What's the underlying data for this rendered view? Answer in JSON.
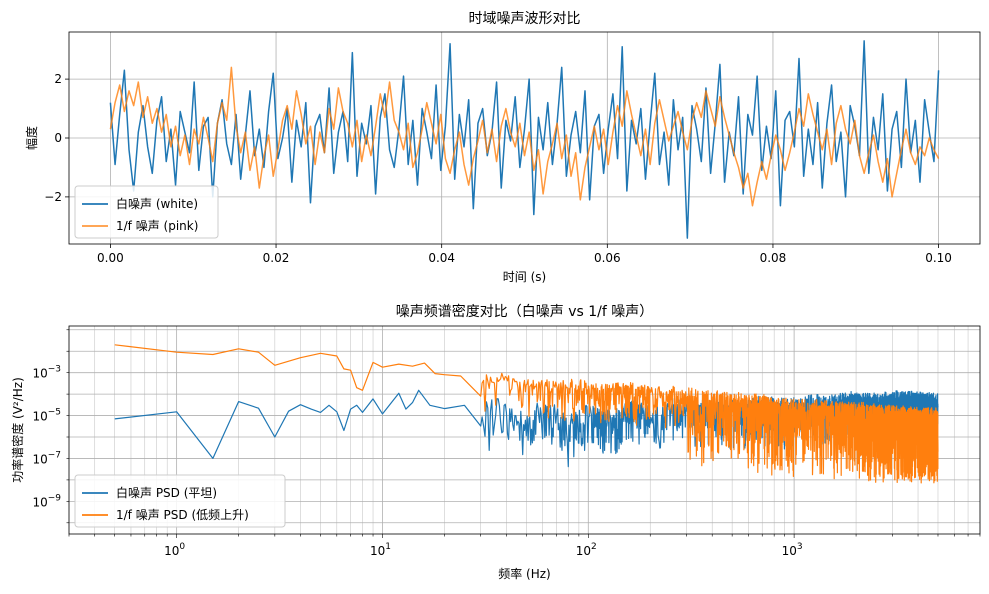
{
  "chart_data": [
    {
      "type": "line",
      "title": "时域噪声波形对比",
      "xlabel": "时间 (s)",
      "ylabel": "幅度",
      "xlim": [
        -0.005,
        0.105
      ],
      "ylim": [
        -3.6,
        3.6
      ],
      "x_ticks": [
        0.0,
        0.02,
        0.04,
        0.06,
        0.08,
        0.1
      ],
      "x_tick_labels": [
        "0.00",
        "0.02",
        "0.04",
        "0.06",
        "0.08",
        "0.10"
      ],
      "y_ticks": [
        -2,
        0,
        2
      ],
      "y_tick_labels": [
        "−2",
        "0",
        "2"
      ],
      "grid": true,
      "legend_position": "lower-left",
      "series": [
        {
          "name": "白噪声 (white)",
          "color": "#1f77b4",
          "opacity": 1.0,
          "x_start": 0.0,
          "x_end": 0.1,
          "values": [
            1.2,
            -0.9,
            0.8,
            2.3,
            -0.4,
            -1.8,
            0.2,
            1.1,
            -0.3,
            -1.2,
            0.6,
            1.4,
            -0.8,
            0.3,
            -1.6,
            0.9,
            0.2,
            -0.5,
            1.9,
            -1.1,
            0.4,
            0.7,
            -2.0,
            0.5,
            1.3,
            -0.2,
            -0.9,
            0.8,
            -1.4,
            0.1,
            1.6,
            -0.6,
            0.3,
            -1.0,
            0.9,
            2.2,
            -0.7,
            0.0,
            1.0,
            -1.5,
            0.6,
            -0.3,
            1.2,
            -2.2,
            0.4,
            0.8,
            -0.5,
            1.7,
            -1.2,
            0.2,
            0.9,
            -0.8,
            2.9,
            -1.3,
            0.5,
            -0.2,
            1.1,
            -1.9,
            0.7,
            1.5,
            -0.4,
            -1.0,
            0.3,
            2.1,
            -0.9,
            0.6,
            -1.6,
            1.0,
            0.2,
            -0.7,
            1.8,
            -1.1,
            0.4,
            3.2,
            -1.4,
            0.8,
            -0.3,
            1.3,
            -2.4,
            0.5,
            1.0,
            -0.6,
            0.2,
            1.9,
            -1.7,
            0.6,
            -0.1,
            1.4,
            -1.0,
            0.3,
            2.0,
            -2.6,
            0.7,
            -0.4,
            1.2,
            -0.9,
            0.5,
            2.4,
            -1.3,
            0.1,
            0.9,
            -0.5,
            1.6,
            -2.1,
            0.4,
            0.8,
            -1.2,
            0.3,
            1.5,
            -0.7,
            3.1,
            -1.8,
            0.6,
            -0.2,
            1.0,
            -1.4,
            0.5,
            2.2,
            -0.9,
            0.2,
            -1.6,
            1.3,
            -0.4,
            0.7,
            -3.4,
            1.1,
            0.3,
            -0.8,
            1.7,
            -1.2,
            0.5,
            2.5,
            -1.5,
            0.2,
            -0.6,
            1.4,
            -1.9,
            0.8,
            0.1,
            2.1,
            -1.1,
            0.4,
            -0.7,
            1.6,
            -2.3,
            0.6,
            0.9,
            -0.3,
            2.7,
            -1.3,
            0.3,
            -0.9,
            1.2,
            -1.7,
            0.5,
            1.8,
            -0.8,
            0.2,
            -2.0,
            1.1,
            0.4,
            -0.6,
            3.3,
            -1.2,
            0.7,
            -0.4,
            1.5,
            -1.8,
            0.3,
            0.9,
            -1.0,
            2.0,
            -0.5,
            0.6,
            -1.5,
            1.3,
            0.2,
            -0.8,
            2.3
          ]
        },
        {
          "name": "1/f 噪声 (pink)",
          "color": "#ff7f0e",
          "opacity": 0.8,
          "x_start": 0.0,
          "x_end": 0.1,
          "values": [
            0.3,
            1.2,
            1.8,
            0.9,
            1.6,
            1.1,
            1.9,
            0.7,
            1.4,
            0.5,
            1.0,
            0.2,
            0.8,
            -0.3,
            0.4,
            -0.6,
            0.1,
            -0.9,
            0.3,
            -0.2,
            0.7,
            0.0,
            -0.8,
            0.5,
            1.2,
            0.6,
            2.4,
            0.4,
            -0.5,
            0.2,
            -1.1,
            -0.3,
            -1.7,
            -0.6,
            0.1,
            -1.3,
            -0.4,
            0.6,
            1.1,
            0.3,
            1.6,
            0.8,
            -0.2,
            0.4,
            -0.9,
            0.2,
            -0.5,
            1.0,
            0.3,
            1.7,
            0.9,
            0.5,
            -0.3,
            0.6,
            -0.8,
            0.1,
            -0.6,
            0.4,
            1.5,
            0.7,
            1.9,
            0.6,
            0.2,
            -0.4,
            0.5,
            -1.0,
            -0.5,
            0.3,
            1.2,
            0.5,
            -0.2,
            0.8,
            -0.7,
            -1.2,
            -0.4,
            0.2,
            -0.9,
            -1.6,
            -0.7,
            -0.1,
            0.6,
            -0.5,
            0.3,
            -0.8,
            0.4,
            1.0,
            0.2,
            -0.3,
            0.5,
            -0.6,
            0.2,
            -1.1,
            -0.4,
            -1.9,
            -0.8,
            -0.2,
            0.5,
            -0.7,
            0.1,
            -1.3,
            -0.5,
            -2.1,
            -1.0,
            -0.3,
            0.4,
            -0.4,
            0.3,
            -0.9,
            0.2,
            1.1,
            0.4,
            1.6,
            0.8,
            0.1,
            -0.6,
            0.3,
            -0.9,
            0.5,
            1.3,
            0.6,
            -0.1,
            0.4,
            0.9,
            0.2,
            -0.4,
            0.6,
            1.2,
            0.7,
            1.6,
            1.0,
            0.4,
            1.4,
            0.7,
            0.1,
            -0.5,
            -1.0,
            -1.7,
            -1.2,
            -2.3,
            -1.5,
            -0.8,
            -1.4,
            -0.6,
            0.1,
            -0.4,
            -1.1,
            -0.5,
            0.2,
            1.0,
            0.4,
            1.5,
            0.8,
            0.2,
            -0.4,
            0.3,
            -0.9,
            0.5,
            1.1,
            0.3,
            -0.2,
            0.6,
            -0.6,
            -1.2,
            -0.5,
            0.1,
            -0.8,
            -1.5,
            -0.7,
            -2.0,
            -1.2,
            -0.4,
            0.3,
            -0.5,
            -0.9,
            -0.3,
            -0.6,
            0.0,
            -0.4,
            -0.7
          ]
        }
      ]
    },
    {
      "type": "line",
      "title": "噪声频谱密度对比（白噪声 vs 1/f 噪声）",
      "xlabel": "频率 (Hz)",
      "ylabel": "功率谱密度 (V²/Hz)",
      "x_scale": "log",
      "y_scale": "log",
      "xlim": [
        0.3,
        8000
      ],
      "ylim": [
        3e-11,
        0.15
      ],
      "x_ticks": [
        1,
        10,
        100,
        1000
      ],
      "x_tick_labels": [
        {
          "base": "10",
          "exp": "0"
        },
        {
          "base": "10",
          "exp": "1"
        },
        {
          "base": "10",
          "exp": "2"
        },
        {
          "base": "10",
          "exp": "3"
        }
      ],
      "y_ticks": [
        1e-09,
        1e-07,
        1e-05,
        0.001
      ],
      "y_tick_labels": [
        {
          "base": "10",
          "exp": "−9"
        },
        {
          "base": "10",
          "exp": "−7"
        },
        {
          "base": "10",
          "exp": "−5"
        },
        {
          "base": "10",
          "exp": "−3"
        }
      ],
      "grid": true,
      "legend_position": "lower-left",
      "series": [
        {
          "name": "白噪声 PSD (平坦)",
          "color": "#1f77b4",
          "x": [
            0.5,
            1,
            1.5,
            2,
            2.5,
            3,
            3.5,
            4,
            4.5,
            5,
            5.5,
            6,
            6.5,
            7,
            7.5,
            8,
            9,
            10,
            11,
            12,
            13,
            14,
            15,
            17,
            20,
            25,
            30,
            35,
            40,
            50,
            60,
            70,
            80,
            100,
            130,
            160,
            200,
            260,
            330,
            420,
            540,
            700,
            900,
            1150,
            1500,
            1900,
            2500,
            3200,
            4000,
            5000
          ],
          "y": [
            7e-06,
            1.5e-05,
            1e-07,
            4.5e-05,
            2.2e-05,
            1e-06,
            1.6e-05,
            3.2e-05,
            2e-05,
            1.4e-05,
            3e-05,
            1.5e-05,
            2e-06,
            2e-05,
            3e-05,
            1.4e-05,
            6e-05,
            1.2e-05,
            3.8e-05,
            0.00011,
            2e-05,
            4e-05,
            0.00015,
            3e-05,
            2.1e-05,
            3e-05,
            1.2e-05,
            4e-05,
            2e-05,
            6e-06,
            3e-05,
            1.5e-05,
            4e-06,
            2.5e-05,
            8e-06,
            3e-05,
            1.5e-05,
            3e-05,
            2e-05,
            3.5e-05,
            2.5e-05,
            4e-05,
            3e-05,
            5e-05,
            4.5e-05,
            6e-05,
            5e-05,
            7e-05,
            6e-05,
            5e-05
          ]
        },
        {
          "name": "1/f 噪声 PSD (低频上升)",
          "color": "#ff7f0e",
          "x": [
            0.5,
            1,
            1.5,
            2,
            2.5,
            3,
            4,
            5,
            6,
            6.5,
            7,
            7.5,
            8,
            9,
            10,
            12,
            14,
            16,
            18,
            20,
            24,
            30,
            36,
            45,
            55,
            70,
            90,
            120,
            160,
            220,
            300,
            400,
            550,
            750,
            1000,
            1400,
            2000,
            2800,
            3800,
            5000
          ],
          "y": [
            0.02,
            0.009,
            0.007,
            0.013,
            0.009,
            0.0022,
            0.005,
            0.008,
            0.006,
            0.0015,
            0.0013,
            0.0002,
            0.00015,
            0.003,
            0.0018,
            0.0025,
            0.002,
            0.0028,
            0.0009,
            0.0008,
            0.0007,
            0.0003,
            0.0006,
            0.0004,
            0.0003,
            0.0002,
            0.00025,
            0.00015,
            0.00018,
            0.00012,
            0.0001,
            8e-05,
            6e-05,
            4e-05,
            3e-05,
            2.5e-05,
            2e-05,
            1.5e-05,
            1.2e-05,
            1e-05
          ]
        }
      ]
    }
  ]
}
